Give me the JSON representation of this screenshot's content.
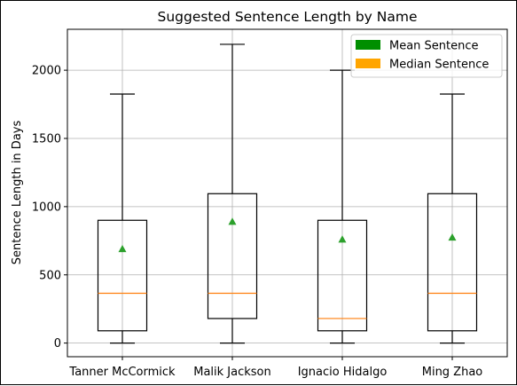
{
  "chart_data": {
    "type": "box",
    "title": "Suggested Sentence Length by Name",
    "xlabel": "",
    "ylabel": "Sentence Length in Days",
    "categories": [
      "Tanner McCormick",
      "Malik Jackson",
      "Ignacio Hidalgo",
      "Ming Zhao"
    ],
    "ylim": [
      -100,
      2300
    ],
    "yticks": [
      0,
      500,
      1000,
      1500,
      2000
    ],
    "grid": true,
    "boxes": [
      {
        "whisker_low": 0,
        "q1": 90,
        "median": 365,
        "q3": 900,
        "whisker_high": 1825,
        "mean": 690
      },
      {
        "whisker_low": 0,
        "q1": 180,
        "median": 365,
        "q3": 1095,
        "whisker_high": 2190,
        "mean": 890
      },
      {
        "whisker_low": 0,
        "q1": 90,
        "median": 180,
        "q3": 900,
        "whisker_high": 2000,
        "mean": 760
      },
      {
        "whisker_low": 0,
        "q1": 90,
        "median": 365,
        "q3": 1095,
        "whisker_high": 1825,
        "mean": 775
      }
    ],
    "legend": {
      "placement": "top-right",
      "entries": [
        {
          "label": "Mean Sentence",
          "color": "#008f00"
        },
        {
          "label": "Median Sentence",
          "color": "#ffa500"
        }
      ]
    },
    "colors": {
      "box": "#000000",
      "median_line": "#ff7f0e",
      "mean_marker": "#2ca02c",
      "grid": "#b0b0b0"
    }
  }
}
